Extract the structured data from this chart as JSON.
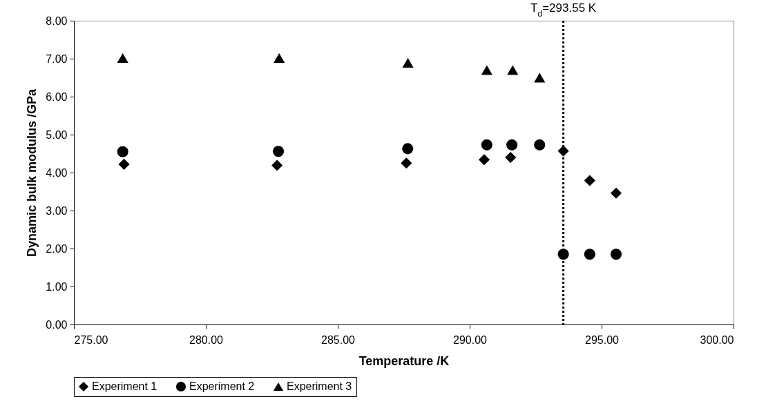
{
  "chart_data": {
    "type": "scatter",
    "xlabel": "Temperature /K",
    "ylabel": "Dynamic bulk modulus /GPa",
    "xlim": [
      275,
      300
    ],
    "xticks": [
      {
        "value": 275,
        "label": "275.00"
      },
      {
        "value": 280,
        "label": "280.00"
      },
      {
        "value": 285,
        "label": "285.00"
      },
      {
        "value": 290,
        "label": "290.00"
      },
      {
        "value": 295,
        "label": "295.00"
      },
      {
        "value": 300,
        "label": "300.00"
      }
    ],
    "ylim": [
      0,
      8
    ],
    "yticks": [
      {
        "value": 0,
        "label": "0.00"
      },
      {
        "value": 1,
        "label": "1.00"
      },
      {
        "value": 2,
        "label": "2.00"
      },
      {
        "value": 3,
        "label": "3.00"
      },
      {
        "value": 4,
        "label": "4.00"
      },
      {
        "value": 5,
        "label": "5.00"
      },
      {
        "value": 6,
        "label": "6.00"
      },
      {
        "value": 7,
        "label": "7.00"
      },
      {
        "value": 8,
        "label": "8.00"
      }
    ],
    "series": [
      {
        "name": "Experiment 1",
        "color": "#000000",
        "marker": "diamond",
        "x": [
          276.9,
          282.7,
          287.6,
          290.55,
          291.55,
          293.55,
          294.55,
          295.55
        ],
        "values": [
          4.22,
          4.19,
          4.25,
          4.34,
          4.4,
          4.57,
          3.79,
          3.46
        ]
      },
      {
        "name": "Experiment 2",
        "color": "#000000",
        "marker": "circle",
        "x": [
          276.85,
          282.75,
          287.65,
          290.65,
          291.6,
          292.65,
          293.55,
          294.55,
          295.55
        ],
        "values": [
          4.55,
          4.56,
          4.63,
          4.73,
          4.73,
          4.73,
          1.85,
          1.85,
          1.85
        ]
      },
      {
        "name": "Experiment 3",
        "color": "#000000",
        "marker": "triangle",
        "x": [
          276.85,
          282.78,
          287.66,
          290.65,
          291.63,
          292.65
        ],
        "values": [
          7.02,
          7.02,
          6.89,
          6.7,
          6.7,
          6.5
        ]
      }
    ],
    "ref_lines": [
      {
        "axis": "x",
        "value": 293.55,
        "label": "T$_{d}$=293.55 K",
        "color": "#000000",
        "line_style": "dotted"
      }
    ],
    "grid": false,
    "legend": "bottom"
  }
}
